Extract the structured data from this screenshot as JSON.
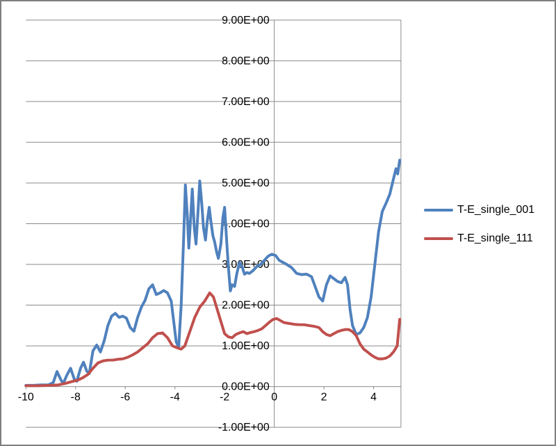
{
  "chart_data": {
    "type": "line",
    "title": "",
    "xlabel": "",
    "ylabel": "",
    "xlim": [
      -10,
      5.1
    ],
    "ylim": [
      -1,
      9
    ],
    "grid": "horizontal-major",
    "legend_position": "right",
    "axis_value_format": "scientific",
    "colors": {
      "series_blue": "#4F81BD",
      "series_red": "#C0504D",
      "grid": "#8A8A8A",
      "axis": "#8A8A8A",
      "frame": "#7F7F7F",
      "background": "#FFFFFF"
    },
    "y_ticks": [
      {
        "value": 9,
        "label": "9.00E+00"
      },
      {
        "value": 8,
        "label": "8.00E+00"
      },
      {
        "value": 7,
        "label": "7.00E+00"
      },
      {
        "value": 6,
        "label": "6.00E+00"
      },
      {
        "value": 5,
        "label": "5.00E+00"
      },
      {
        "value": 4,
        "label": "4.00E+00"
      },
      {
        "value": 3,
        "label": "3.00E+00"
      },
      {
        "value": 2,
        "label": "2.00E+00"
      },
      {
        "value": 1,
        "label": "1.00E+00"
      },
      {
        "value": 0,
        "label": "0.00E+00"
      },
      {
        "value": -1,
        "label": "-1.00E+00"
      }
    ],
    "x_ticks": [
      {
        "value": -10,
        "label": "-10"
      },
      {
        "value": -8,
        "label": "-8"
      },
      {
        "value": -6,
        "label": "-6"
      },
      {
        "value": -4,
        "label": "-4"
      },
      {
        "value": -2,
        "label": "-2"
      },
      {
        "value": 0,
        "label": "0"
      },
      {
        "value": 2,
        "label": "2"
      },
      {
        "value": 4,
        "label": "4"
      }
    ],
    "series": [
      {
        "name": "T-E_single_001",
        "color": "#4F81BD",
        "points": [
          [
            -10,
            0.03
          ],
          [
            -9.7,
            0.03
          ],
          [
            -9.4,
            0.04
          ],
          [
            -9.1,
            0.04
          ],
          [
            -8.9,
            0.1
          ],
          [
            -8.75,
            0.37
          ],
          [
            -8.6,
            0.18
          ],
          [
            -8.5,
            0.07
          ],
          [
            -8.35,
            0.28
          ],
          [
            -8.2,
            0.45
          ],
          [
            -8.05,
            0.18
          ],
          [
            -7.95,
            0.13
          ],
          [
            -7.8,
            0.45
          ],
          [
            -7.68,
            0.6
          ],
          [
            -7.55,
            0.38
          ],
          [
            -7.45,
            0.32
          ],
          [
            -7.3,
            0.88
          ],
          [
            -7.15,
            1.02
          ],
          [
            -7.0,
            0.85
          ],
          [
            -6.85,
            1.12
          ],
          [
            -6.7,
            1.5
          ],
          [
            -6.55,
            1.73
          ],
          [
            -6.4,
            1.8
          ],
          [
            -6.25,
            1.7
          ],
          [
            -6.1,
            1.73
          ],
          [
            -5.95,
            1.68
          ],
          [
            -5.8,
            1.45
          ],
          [
            -5.65,
            1.36
          ],
          [
            -5.5,
            1.7
          ],
          [
            -5.35,
            1.95
          ],
          [
            -5.2,
            2.12
          ],
          [
            -5.05,
            2.4
          ],
          [
            -4.9,
            2.5
          ],
          [
            -4.75,
            2.26
          ],
          [
            -4.6,
            2.3
          ],
          [
            -4.45,
            2.36
          ],
          [
            -4.3,
            2.3
          ],
          [
            -4.15,
            2.1
          ],
          [
            -4.05,
            1.6
          ],
          [
            -3.95,
            1.1
          ],
          [
            -3.85,
            0.97
          ],
          [
            -3.75,
            2.0
          ],
          [
            -3.65,
            3.6
          ],
          [
            -3.58,
            4.95
          ],
          [
            -3.5,
            4.2
          ],
          [
            -3.44,
            3.4
          ],
          [
            -3.37,
            4.1
          ],
          [
            -3.3,
            4.85
          ],
          [
            -3.22,
            3.9
          ],
          [
            -3.15,
            3.5
          ],
          [
            -3.07,
            4.3
          ],
          [
            -3.0,
            5.05
          ],
          [
            -2.92,
            4.5
          ],
          [
            -2.85,
            3.9
          ],
          [
            -2.77,
            3.6
          ],
          [
            -2.7,
            4.05
          ],
          [
            -2.62,
            4.4
          ],
          [
            -2.55,
            4.05
          ],
          [
            -2.47,
            3.7
          ],
          [
            -2.4,
            3.55
          ],
          [
            -2.32,
            3.3
          ],
          [
            -2.25,
            3.15
          ],
          [
            -2.15,
            3.5
          ],
          [
            -2.07,
            4.15
          ],
          [
            -2.0,
            4.4
          ],
          [
            -1.92,
            3.6
          ],
          [
            -1.85,
            2.95
          ],
          [
            -1.77,
            2.35
          ],
          [
            -1.7,
            2.5
          ],
          [
            -1.6,
            2.46
          ],
          [
            -1.5,
            2.8
          ],
          [
            -1.4,
            3.05
          ],
          [
            -1.3,
            2.95
          ],
          [
            -1.2,
            2.76
          ],
          [
            -1.1,
            2.8
          ],
          [
            -1.0,
            2.78
          ],
          [
            -0.85,
            2.85
          ],
          [
            -0.7,
            2.95
          ],
          [
            -0.55,
            3.0
          ],
          [
            -0.4,
            3.1
          ],
          [
            -0.25,
            3.2
          ],
          [
            -0.1,
            3.25
          ],
          [
            0.05,
            3.22
          ],
          [
            0.2,
            3.1
          ],
          [
            0.35,
            3.05
          ],
          [
            0.5,
            3.0
          ],
          [
            0.7,
            2.92
          ],
          [
            0.9,
            2.78
          ],
          [
            1.1,
            2.75
          ],
          [
            1.3,
            2.76
          ],
          [
            1.5,
            2.7
          ],
          [
            1.65,
            2.45
          ],
          [
            1.8,
            2.2
          ],
          [
            1.95,
            2.1
          ],
          [
            2.1,
            2.5
          ],
          [
            2.25,
            2.72
          ],
          [
            2.4,
            2.65
          ],
          [
            2.55,
            2.58
          ],
          [
            2.7,
            2.55
          ],
          [
            2.85,
            2.68
          ],
          [
            2.95,
            2.5
          ],
          [
            3.05,
            1.9
          ],
          [
            3.15,
            1.5
          ],
          [
            3.3,
            1.28
          ],
          [
            3.45,
            1.32
          ],
          [
            3.6,
            1.45
          ],
          [
            3.75,
            1.7
          ],
          [
            3.9,
            2.2
          ],
          [
            4.05,
            3.0
          ],
          [
            4.2,
            3.8
          ],
          [
            4.35,
            4.3
          ],
          [
            4.5,
            4.5
          ],
          [
            4.65,
            4.72
          ],
          [
            4.8,
            5.1
          ],
          [
            4.9,
            5.35
          ],
          [
            4.97,
            5.22
          ],
          [
            5.05,
            5.56
          ]
        ]
      },
      {
        "name": "T-E_single_111",
        "color": "#C0504D",
        "points": [
          [
            -10,
            0.02
          ],
          [
            -9.5,
            0.02
          ],
          [
            -9.0,
            0.03
          ],
          [
            -8.7,
            0.04
          ],
          [
            -8.4,
            0.08
          ],
          [
            -8.1,
            0.13
          ],
          [
            -7.9,
            0.16
          ],
          [
            -7.7,
            0.22
          ],
          [
            -7.5,
            0.3
          ],
          [
            -7.3,
            0.45
          ],
          [
            -7.1,
            0.58
          ],
          [
            -6.9,
            0.63
          ],
          [
            -6.7,
            0.65
          ],
          [
            -6.5,
            0.65
          ],
          [
            -6.3,
            0.67
          ],
          [
            -6.1,
            0.68
          ],
          [
            -5.9,
            0.72
          ],
          [
            -5.7,
            0.78
          ],
          [
            -5.5,
            0.85
          ],
          [
            -5.3,
            0.95
          ],
          [
            -5.1,
            1.05
          ],
          [
            -4.9,
            1.2
          ],
          [
            -4.7,
            1.3
          ],
          [
            -4.5,
            1.32
          ],
          [
            -4.3,
            1.2
          ],
          [
            -4.1,
            1.0
          ],
          [
            -3.9,
            0.95
          ],
          [
            -3.75,
            0.92
          ],
          [
            -3.6,
            1.0
          ],
          [
            -3.4,
            1.35
          ],
          [
            -3.2,
            1.7
          ],
          [
            -3.0,
            1.95
          ],
          [
            -2.8,
            2.1
          ],
          [
            -2.6,
            2.3
          ],
          [
            -2.45,
            2.2
          ],
          [
            -2.3,
            1.9
          ],
          [
            -2.15,
            1.6
          ],
          [
            -2.0,
            1.3
          ],
          [
            -1.85,
            1.22
          ],
          [
            -1.7,
            1.2
          ],
          [
            -1.55,
            1.28
          ],
          [
            -1.4,
            1.32
          ],
          [
            -1.25,
            1.35
          ],
          [
            -1.1,
            1.3
          ],
          [
            -0.95,
            1.33
          ],
          [
            -0.8,
            1.35
          ],
          [
            -0.65,
            1.38
          ],
          [
            -0.5,
            1.42
          ],
          [
            -0.35,
            1.5
          ],
          [
            -0.2,
            1.58
          ],
          [
            -0.05,
            1.65
          ],
          [
            0.1,
            1.67
          ],
          [
            0.25,
            1.62
          ],
          [
            0.4,
            1.57
          ],
          [
            0.6,
            1.55
          ],
          [
            0.8,
            1.53
          ],
          [
            1.0,
            1.52
          ],
          [
            1.2,
            1.52
          ],
          [
            1.4,
            1.5
          ],
          [
            1.6,
            1.48
          ],
          [
            1.8,
            1.45
          ],
          [
            1.95,
            1.35
          ],
          [
            2.1,
            1.28
          ],
          [
            2.25,
            1.25
          ],
          [
            2.4,
            1.3
          ],
          [
            2.55,
            1.35
          ],
          [
            2.7,
            1.38
          ],
          [
            2.85,
            1.4
          ],
          [
            3.0,
            1.4
          ],
          [
            3.15,
            1.35
          ],
          [
            3.3,
            1.25
          ],
          [
            3.45,
            1.05
          ],
          [
            3.6,
            0.92
          ],
          [
            3.75,
            0.85
          ],
          [
            3.9,
            0.78
          ],
          [
            4.05,
            0.72
          ],
          [
            4.2,
            0.68
          ],
          [
            4.35,
            0.68
          ],
          [
            4.5,
            0.7
          ],
          [
            4.65,
            0.75
          ],
          [
            4.8,
            0.85
          ],
          [
            4.95,
            1.0
          ],
          [
            5.05,
            1.65
          ]
        ]
      }
    ]
  },
  "legend": {
    "items": [
      {
        "label": "T-E_single_001"
      },
      {
        "label": "T-E_single_111"
      }
    ]
  }
}
